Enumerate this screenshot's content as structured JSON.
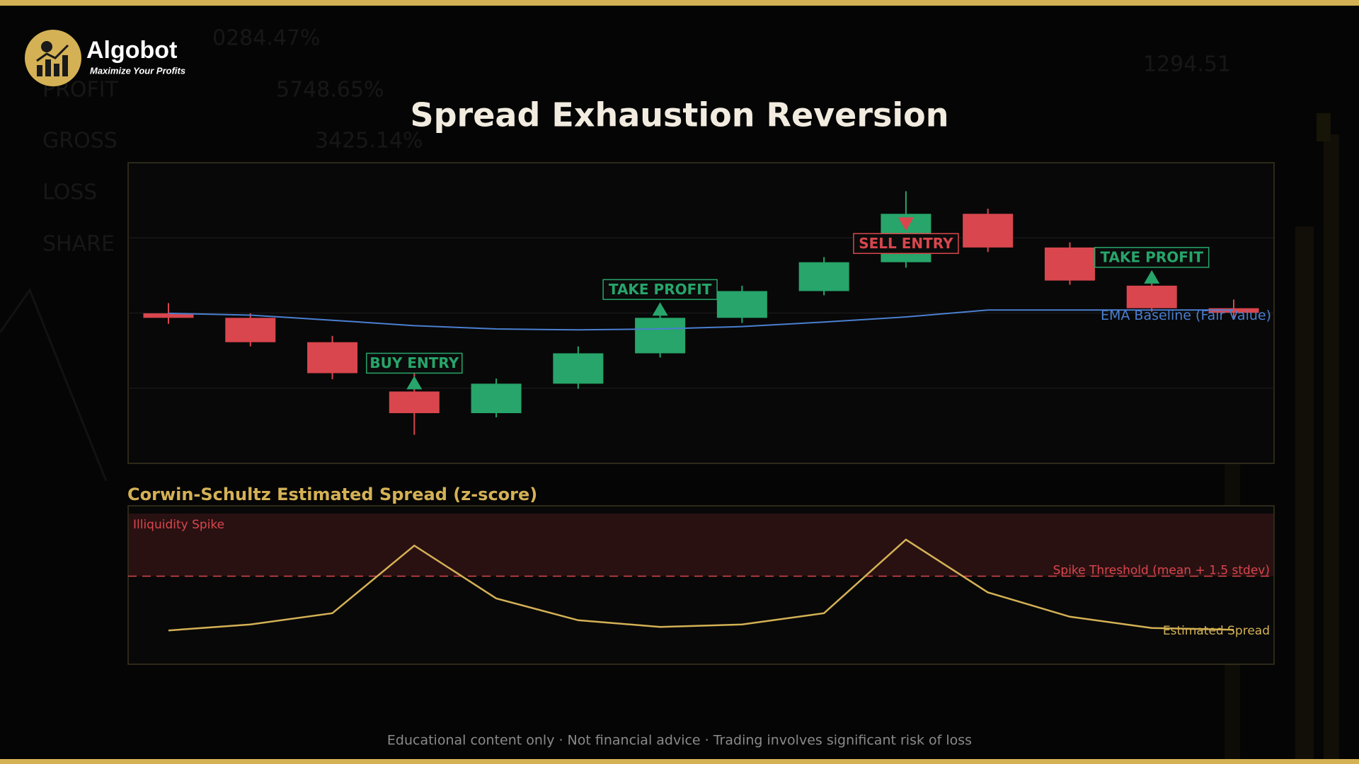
{
  "header": {
    "brand": "Algobot",
    "tagline": "Maximize Your Profits"
  },
  "background_text": [
    "0284.47%",
    "PROFIT",
    "5748.65%",
    "GROSS",
    "3425.14%",
    "LOSS",
    "SHARE",
    "1294.51"
  ],
  "chart_data": [
    {
      "type": "candlestick",
      "title": "Spread Exhaustion Reversion",
      "ylim": [
        0,
        100
      ],
      "grid_lines": [
        25,
        50,
        75
      ],
      "up_color": "#27a56a",
      "down_color": "#d9464d",
      "open": [
        49.9,
        48.4,
        40.3,
        23.9,
        16.7,
        26.5,
        36.6,
        48.4,
        57.3,
        66.9,
        83.0,
        71.8,
        59.1,
        51.6
      ],
      "high": [
        53.3,
        49.9,
        42.4,
        32.6,
        28.2,
        38.9,
        49.9,
        59.1,
        68.6,
        90.5,
        84.7,
        73.5,
        60.8,
        54.5
      ],
      "low": [
        46.4,
        38.9,
        28.0,
        9.5,
        15.3,
        24.8,
        35.2,
        46.7,
        55.9,
        65.1,
        70.3,
        59.4,
        50.4,
        48.1
      ],
      "close": [
        48.4,
        40.3,
        30.0,
        16.7,
        26.5,
        36.6,
        48.4,
        57.3,
        66.9,
        83.0,
        71.8,
        60.8,
        51.6,
        50.1
      ],
      "series": [
        {
          "name": "EMA Baseline (Fair Value)",
          "color": "#4a7fd0",
          "values": [
            49.9,
            49.3,
            47.6,
            45.8,
            44.7,
            44.4,
            44.7,
            45.5,
            47.0,
            48.7,
            51.0,
            51.0,
            51.0,
            51.0
          ]
        }
      ],
      "signals": [
        null,
        null,
        null,
        {
          "label": "BUY ENTRY",
          "direction": "up",
          "color": "#27a56a"
        },
        null,
        null,
        {
          "label": "TAKE PROFIT",
          "direction": "up",
          "color": "#27a56a"
        },
        null,
        null,
        {
          "label": "SELL ENTRY",
          "direction": "down",
          "color": "#d9464d"
        },
        null,
        null,
        {
          "label": "TAKE PROFIT",
          "direction": "up",
          "color": "#27a56a"
        },
        null
      ]
    },
    {
      "type": "line",
      "title": "Corwin-Schultz Estimated Spread (z-score)",
      "ylim": [
        -1,
        3.5
      ],
      "series": [
        {
          "name": "Estimated Spread",
          "color": "#d4b155",
          "values": [
            -0.04,
            0.13,
            0.45,
            2.37,
            0.87,
            0.25,
            0.06,
            0.13,
            0.45,
            2.54,
            1.04,
            0.35,
            0.03,
            -0.02
          ]
        }
      ],
      "threshold": {
        "label": "Spike Threshold (mean + 1.5 stdev)",
        "value": 1.5,
        "color": "#d9464d"
      },
      "zone": {
        "label": "Illiquidity Spike",
        "color": "#d9464d"
      }
    }
  ],
  "footer": "Educational content only  ·  Not financial advice  ·  Trading involves significant risk of loss"
}
